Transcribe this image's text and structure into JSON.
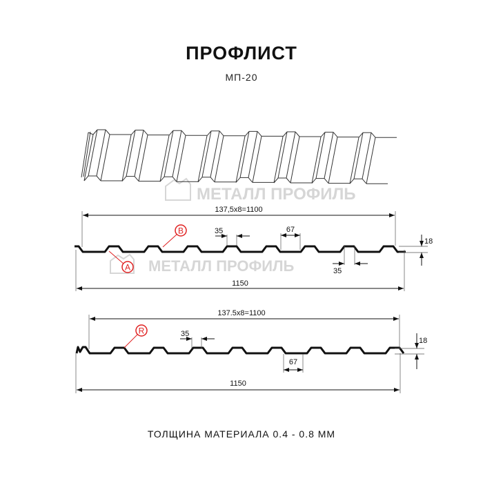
{
  "header": {
    "title": "ПРОФЛИСТ",
    "subtitle": "МП-20"
  },
  "watermark": {
    "text": "МЕТАЛЛ ПРОФИЛЬ"
  },
  "profile_a": {
    "pitch_label": "137,5x8=1100",
    "width_label": "1150",
    "crest_label": "35",
    "valley_label": "35",
    "gap_label": "67",
    "height_label": "18",
    "marker_a": "A",
    "marker_b": "B"
  },
  "profile_r": {
    "pitch_label": "137.5x8=1100",
    "width_label": "1150",
    "crest_label": "35",
    "gap_label": "67",
    "height_label": "18",
    "marker_r": "R"
  },
  "footer": {
    "text": "ТОЛЩИНА МАТЕРИАЛА 0.4 - 0.8 ММ"
  },
  "colors": {
    "marker": "#e02020",
    "line": "#111111",
    "watermark": "#d6d6d6"
  }
}
